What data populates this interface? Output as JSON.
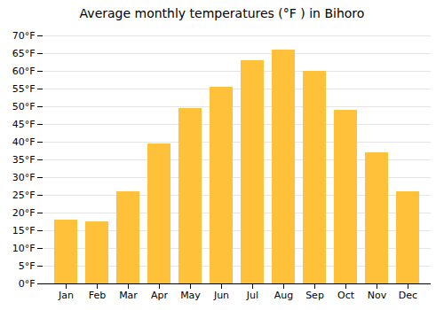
{
  "chart_data": {
    "type": "bar",
    "title": "Average monthly temperatures (°F ) in Bihoro",
    "categories": [
      "Jan",
      "Feb",
      "Mar",
      "Apr",
      "May",
      "Jun",
      "Jul",
      "Aug",
      "Sep",
      "Oct",
      "Nov",
      "Dec"
    ],
    "values": [
      18,
      17.5,
      26,
      39.5,
      49.5,
      55.5,
      63,
      66,
      60,
      49,
      37,
      26
    ],
    "color": "#FFC03A",
    "ylim": [
      0,
      70
    ],
    "yticks": [
      {
        "value": 0,
        "label": "0°F"
      },
      {
        "value": 5,
        "label": "5°F"
      },
      {
        "value": 10,
        "label": "10°F"
      },
      {
        "value": 15,
        "label": "15°F"
      },
      {
        "value": 20,
        "label": "20°F"
      },
      {
        "value": 25,
        "label": "25°F"
      },
      {
        "value": 30,
        "label": "30°F"
      },
      {
        "value": 35,
        "label": "35°F"
      },
      {
        "value": 40,
        "label": "40°F"
      },
      {
        "value": 45,
        "label": "45°F"
      },
      {
        "value": 50,
        "label": "50°F"
      },
      {
        "value": 55,
        "label": "55°F"
      },
      {
        "value": 60,
        "label": "60°F"
      },
      {
        "value": 65,
        "label": "65°F"
      },
      {
        "value": 70,
        "label": "70°F"
      }
    ],
    "grid": true
  }
}
